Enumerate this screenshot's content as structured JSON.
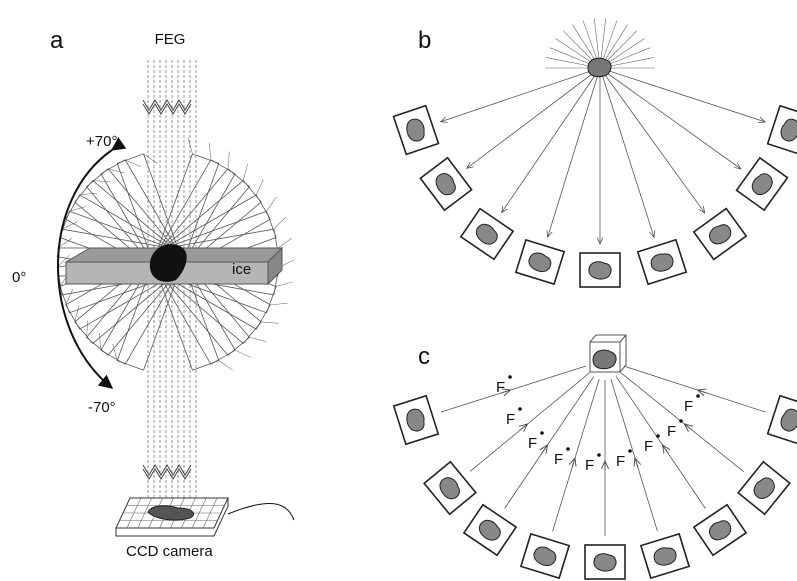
{
  "panel_a": {
    "label": "a",
    "beam_label": "FEG",
    "tilt_max": "+70°",
    "tilt_zero": "0°",
    "tilt_min": "-70°",
    "ice_label": "ice",
    "detector_label": "CCD camera"
  },
  "panel_b": {
    "label": "b"
  },
  "panel_c": {
    "label": "c",
    "focus_labels": [
      "F",
      "F",
      "F",
      "F",
      "F",
      "F",
      "F",
      "F",
      "F"
    ]
  }
}
